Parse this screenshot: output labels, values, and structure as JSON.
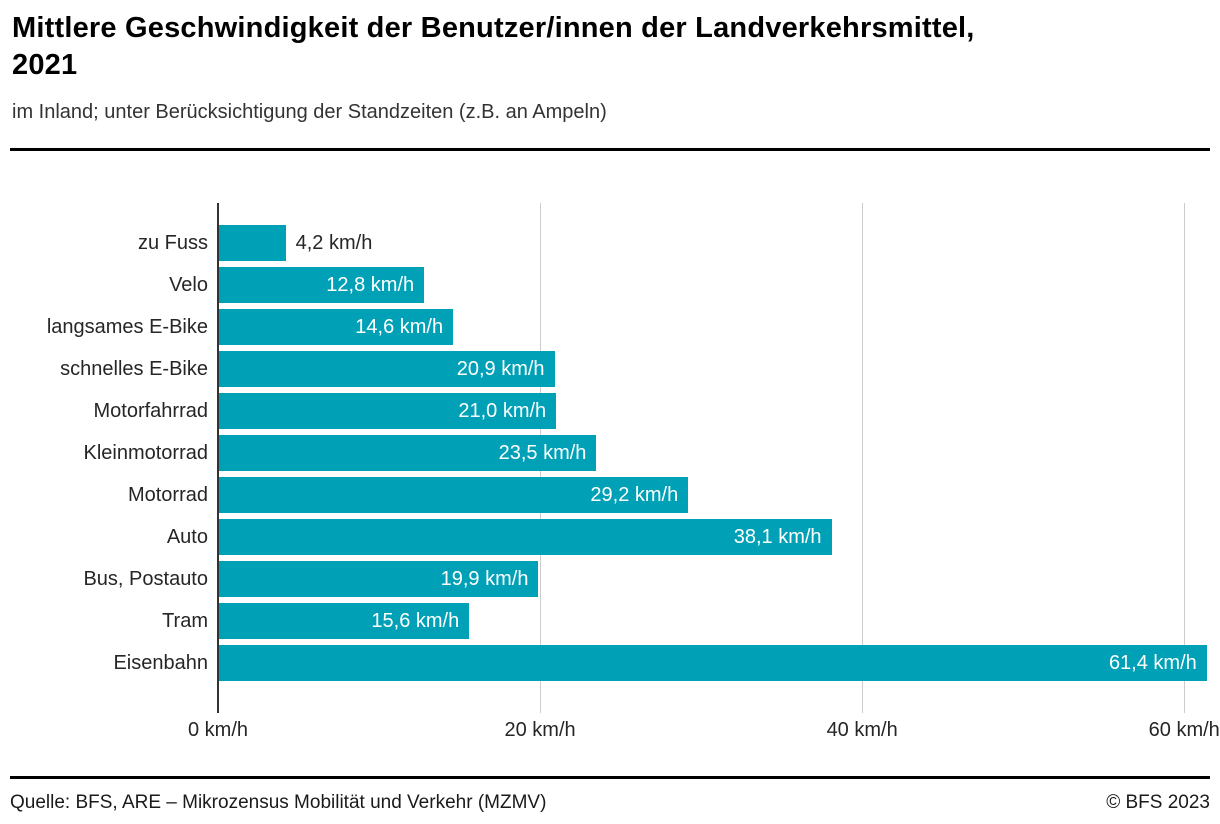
{
  "header": {
    "title_line1": "Mittlere Geschwindigkeit der Benutzer/innen der Landverkehrsmittel,",
    "title_line2": "2021",
    "subtitle": "im Inland; unter Berücksichtigung der Standzeiten (z.B. an Ampeln)"
  },
  "chart_data": {
    "type": "bar",
    "orientation": "horizontal",
    "title": "Mittlere Geschwindigkeit der Benutzer/innen der Landverkehrsmittel, 2021",
    "subtitle": "im Inland; unter Berücksichtigung der Standzeiten (z.B. an Ampeln)",
    "categories": [
      "zu Fuss",
      "Velo",
      "langsames E-Bike",
      "schnelles E-Bike",
      "Motorfahrrad",
      "Kleinmotorrad",
      "Motorrad",
      "Auto",
      "Bus, Postauto",
      "Tram",
      "Eisenbahn"
    ],
    "values": [
      4.2,
      12.8,
      14.6,
      20.9,
      21.0,
      23.5,
      29.2,
      38.1,
      19.9,
      15.6,
      61.4
    ],
    "value_labels": [
      "4,2 km/h",
      "12,8 km/h",
      "14,6 km/h",
      "20,9 km/h",
      "21,0 km/h",
      "23,5 km/h",
      "29,2 km/h",
      "38,1 km/h",
      "19,9 km/h",
      "15,6 km/h",
      "61,4 km/h"
    ],
    "x_ticks": [
      {
        "value": 0,
        "label": "0 km/h"
      },
      {
        "value": 20,
        "label": "20 km/h"
      },
      {
        "value": 40,
        "label": "40 km/h"
      },
      {
        "value": 60,
        "label": "60 km/h"
      }
    ],
    "xlim": [
      0,
      61.6
    ],
    "xlabel": "",
    "ylabel": "",
    "grid": "vertical-only",
    "legend": "none",
    "bar_color": "#00a1b7",
    "gridline_color": "#cccccc",
    "axis_line_color": "#333333",
    "value_label_inside_color": "#ffffff",
    "value_label_outside_color": "#262626"
  },
  "footer": {
    "source": "Quelle: BFS, ARE – Mikrozensus Mobilität und Verkehr (MZMV)",
    "copyright": "© BFS 2023"
  }
}
